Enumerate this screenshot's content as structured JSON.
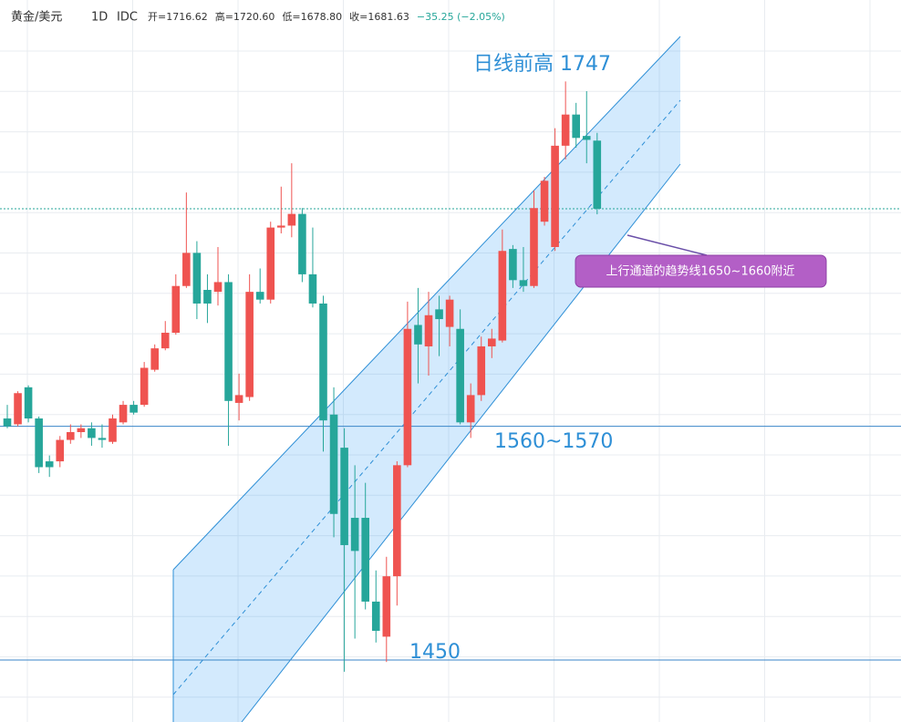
{
  "chart_data": {
    "type": "candlestick",
    "header": {
      "symbol": "黄金/美元",
      "interval": "1D",
      "source": "IDC",
      "ohlc_text": [
        "开=1716.62",
        "高=1720.60",
        "低=1678.80",
        "收=1681.63",
        "−35.25 (−2.05%)"
      ]
    },
    "ylim": [
      1418.2,
      1788.8
    ],
    "up_color": "#ef5350",
    "down_color": "#26a69a",
    "series": {
      "open": [
        1574,
        1571,
        1590,
        1574,
        1552,
        1552,
        1563,
        1567,
        1569,
        1564,
        1562,
        1572,
        1581,
        1581,
        1599,
        1610,
        1618,
        1642,
        1659,
        1640,
        1639,
        1644,
        1582,
        1585,
        1639,
        1635,
        1672,
        1673,
        1679,
        1648,
        1633,
        1576,
        1559,
        1523,
        1523,
        1480,
        1462,
        1493,
        1550,
        1622,
        1611,
        1630,
        1621,
        1620,
        1572,
        1586,
        1611,
        1614,
        1661,
        1645,
        1642,
        1675,
        1662,
        1714,
        1730,
        1719,
        1716.62
      ],
      "high": [
        1581,
        1588,
        1591,
        1575,
        1555,
        1565,
        1571,
        1571,
        1572,
        1571,
        1576,
        1583,
        1583,
        1603,
        1612,
        1624,
        1648,
        1690,
        1665,
        1648,
        1662,
        1648,
        1597,
        1648,
        1651,
        1675,
        1693,
        1705,
        1682,
        1672,
        1637,
        1590,
        1569,
        1550,
        1541,
        1496,
        1503,
        1552,
        1634,
        1641,
        1639,
        1637,
        1637,
        1630,
        1592,
        1616,
        1620,
        1671,
        1663,
        1662,
        1691,
        1698,
        1723,
        1747,
        1736,
        1742,
        1720.6
      ],
      "low": [
        1569,
        1570,
        1572,
        1546,
        1544,
        1549,
        1561,
        1564,
        1560,
        1559,
        1561,
        1571,
        1576,
        1580,
        1598,
        1609,
        1617,
        1641,
        1625,
        1623,
        1632,
        1560,
        1573,
        1583,
        1633,
        1633,
        1669,
        1667,
        1644,
        1631,
        1557,
        1513,
        1444,
        1461,
        1476,
        1459,
        1449,
        1478,
        1549,
        1592,
        1596,
        1606,
        1611,
        1571,
        1564,
        1583,
        1605,
        1613,
        1641,
        1639,
        1641,
        1673,
        1660,
        1707,
        1713,
        1705,
        1678.8
      ],
      "close": [
        1570,
        1587,
        1574,
        1549,
        1549,
        1563,
        1567,
        1569,
        1564,
        1563,
        1574,
        1581,
        1577,
        1600,
        1610,
        1618,
        1642,
        1659,
        1633,
        1633,
        1644,
        1583,
        1586,
        1639,
        1635,
        1672,
        1673,
        1679,
        1648,
        1633,
        1573,
        1525,
        1509,
        1506,
        1480,
        1465,
        1493,
        1550,
        1620,
        1612,
        1627,
        1625,
        1635,
        1572,
        1586,
        1611,
        1615,
        1660,
        1645,
        1642,
        1682,
        1696,
        1714,
        1730,
        1718,
        1717,
        1681.63
      ]
    },
    "levels": [
      1570,
      1450
    ],
    "annotations": [
      "日线前高 1747",
      "1560~1570",
      "1450",
      "上行通道的趋势线1650~1660附近"
    ]
  }
}
